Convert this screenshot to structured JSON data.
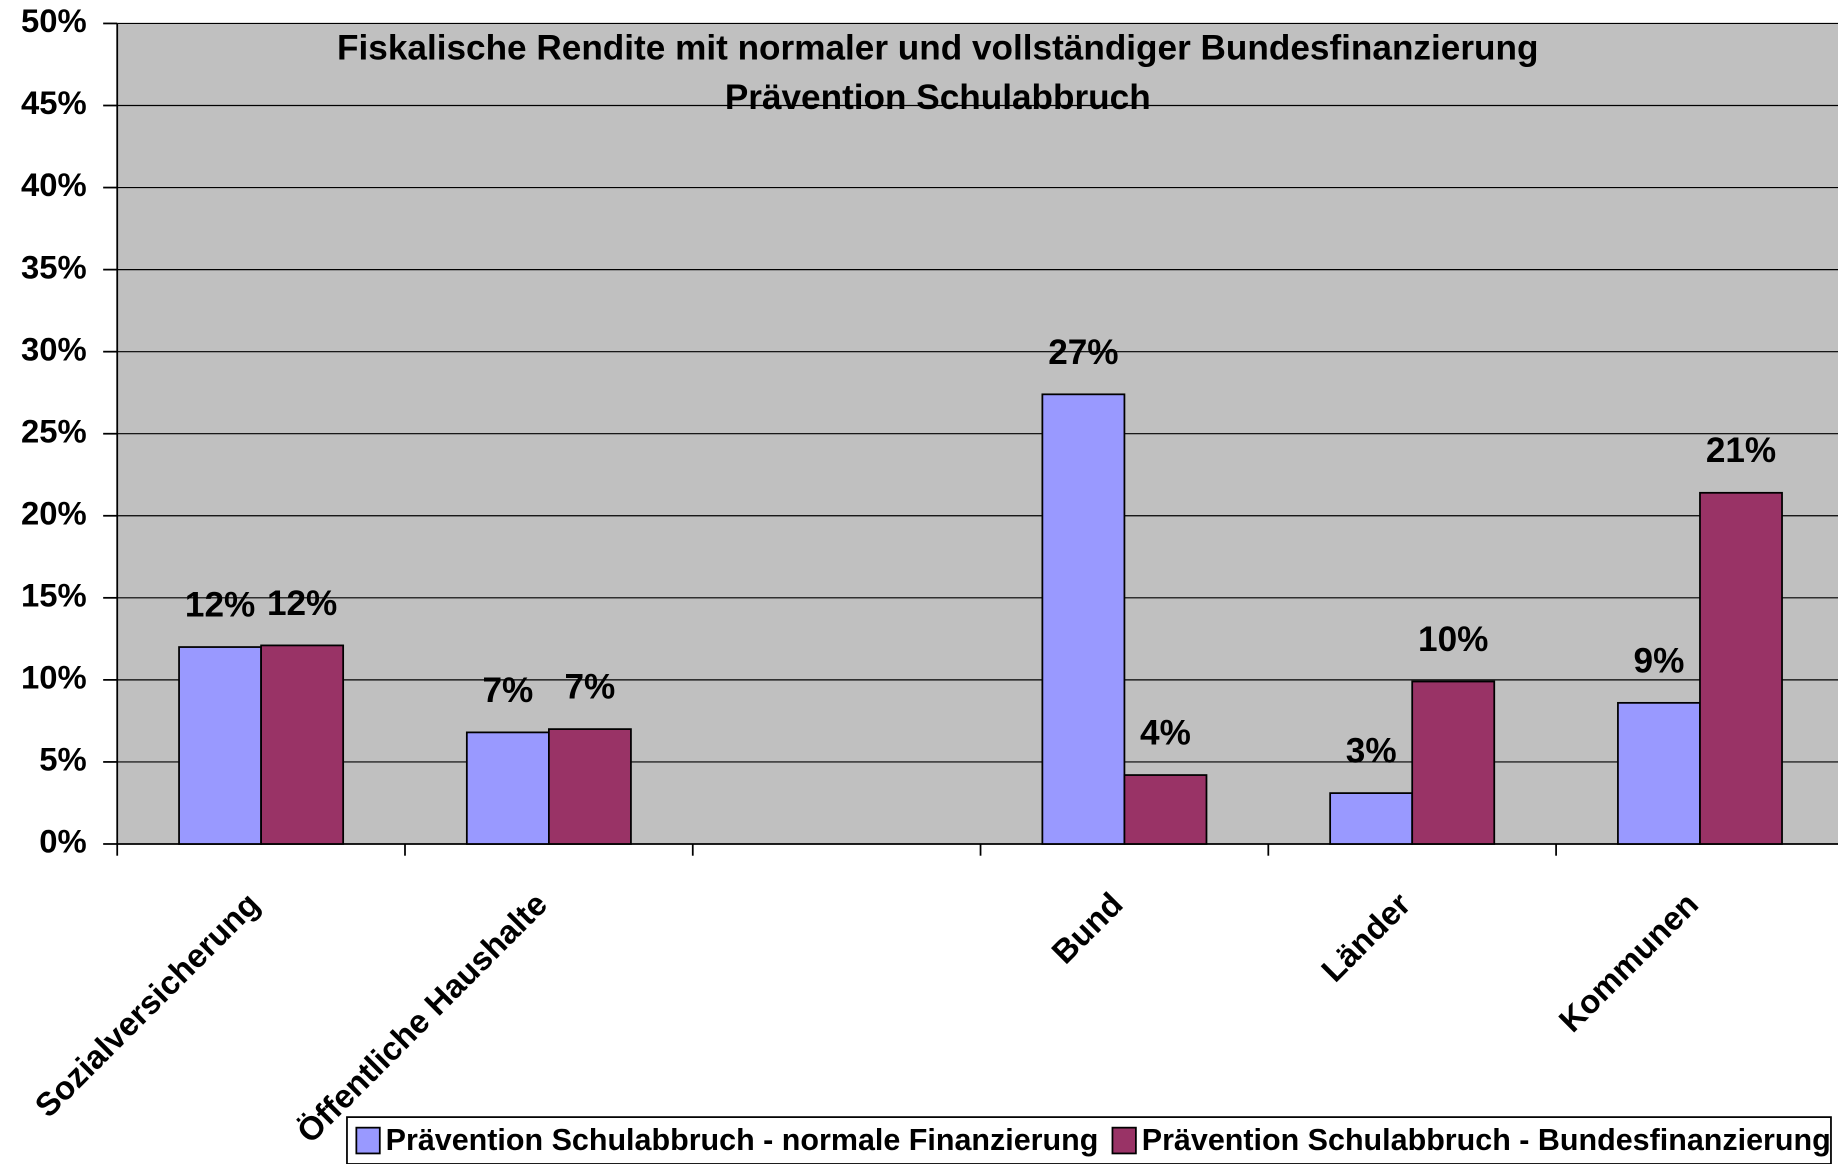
{
  "chart_data": {
    "type": "bar",
    "title": "Fiskalische Rendite mit normaler und vollständiger Bundesfinanzierung",
    "subtitle": "Prävention Schulabbruch",
    "categories": [
      "Sozialversicherung",
      "Öffentliche Haushalte",
      null,
      "Bund",
      "Länder",
      "Kommunen"
    ],
    "series": [
      {
        "name": "Prävention Schulabbruch - normale Finanzierung",
        "color": "#9999ff",
        "values": [
          12.0,
          6.8,
          null,
          27.4,
          3.1,
          8.6
        ],
        "value_labels": [
          "12%",
          "7%",
          null,
          "27%",
          "3%",
          "9%"
        ]
      },
      {
        "name": "Prävention Schulabbruch - Bundesfinanzierung",
        "color": "#993366",
        "values": [
          12.1,
          7.0,
          null,
          4.2,
          9.9,
          21.4
        ],
        "value_labels": [
          "12%",
          "7%",
          null,
          "4%",
          "10%",
          "21%"
        ]
      }
    ],
    "ylim": [
      0,
      50
    ],
    "yticks": [
      {
        "value": 0,
        "label": "0%"
      },
      {
        "value": 5,
        "label": "5%"
      },
      {
        "value": 10,
        "label": "10%"
      },
      {
        "value": 15,
        "label": "15%"
      },
      {
        "value": 20,
        "label": "20%"
      },
      {
        "value": 25,
        "label": "25%"
      },
      {
        "value": 30,
        "label": "30%"
      },
      {
        "value": 35,
        "label": "35%"
      },
      {
        "value": 40,
        "label": "40%"
      },
      {
        "value": 45,
        "label": "45%"
      },
      {
        "value": 50,
        "label": "50%"
      }
    ],
    "grid": true,
    "background": "#c0c0c0",
    "legend": "bottom"
  }
}
